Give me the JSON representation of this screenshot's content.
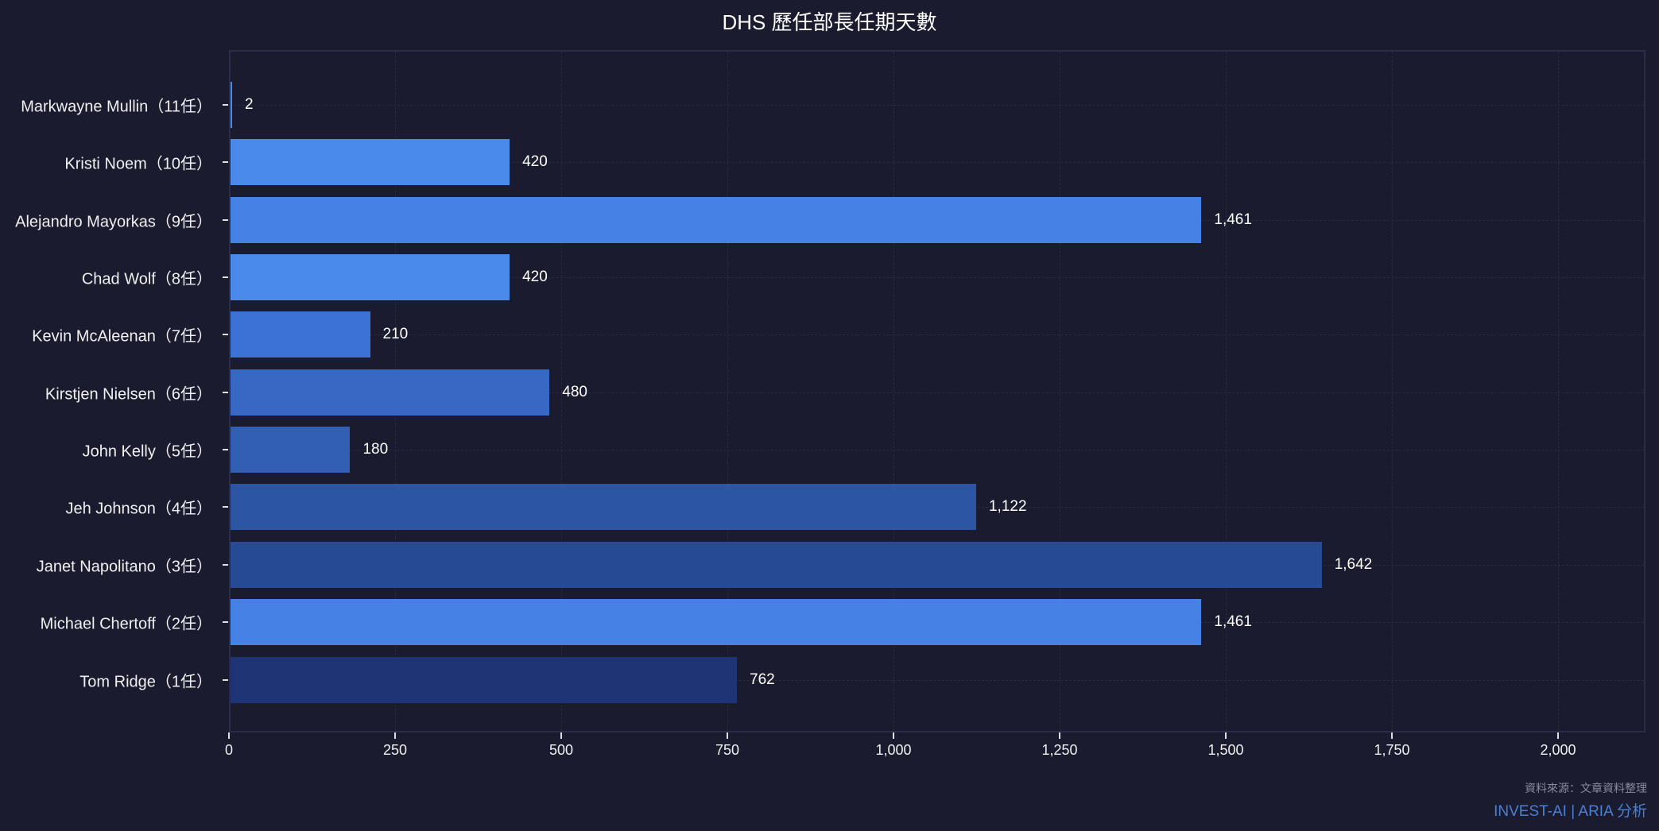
{
  "title": "DHS 歷任部長任期天數",
  "footer": {
    "source": "資料來源：文章資料整理",
    "brand": "INVEST-AI | ARIA 分析"
  },
  "chart_data": {
    "type": "bar",
    "orientation": "horizontal",
    "title": "DHS 歷任部長任期天數",
    "xlabel": "",
    "ylabel": "",
    "xlim": [
      0,
      2132
    ],
    "xticks": [
      0,
      250,
      500,
      750,
      1000,
      1250,
      1500,
      1750,
      2000
    ],
    "xtick_labels": [
      "0",
      "250",
      "500",
      "750",
      "1,000",
      "1,250",
      "1,500",
      "1,750",
      "2,000"
    ],
    "grid": true,
    "legend": null,
    "categories": [
      "Markwayne Mullin（11任）",
      "Kristi Noem（10任）",
      "Alejandro Mayorkas（9任）",
      "Chad Wolf（8任）",
      "Kevin McAleenan（7任）",
      "Kirstjen Nielsen（6任）",
      "John Kelly（5任）",
      "Jeh Johnson（4任）",
      "Janet Napolitano（3任）",
      "Michael Chertoff（2任）",
      "Tom Ridge（1任）"
    ],
    "values": [
      2,
      420,
      1461,
      420,
      210,
      480,
      180,
      1122,
      1642,
      1461,
      762
    ],
    "value_labels": [
      "2",
      "420",
      "1,461",
      "420",
      "210",
      "480",
      "180",
      "1,122",
      "1,642",
      "1,461",
      "762"
    ],
    "colors": [
      "#4a8ae8",
      "#4a8ae8",
      "#4682e6",
      "#4a8ae8",
      "#3b72d4",
      "#3768c4",
      "#325fb4",
      "#2c56a4",
      "#274a94",
      "#4682e6",
      "#1e3474"
    ]
  }
}
